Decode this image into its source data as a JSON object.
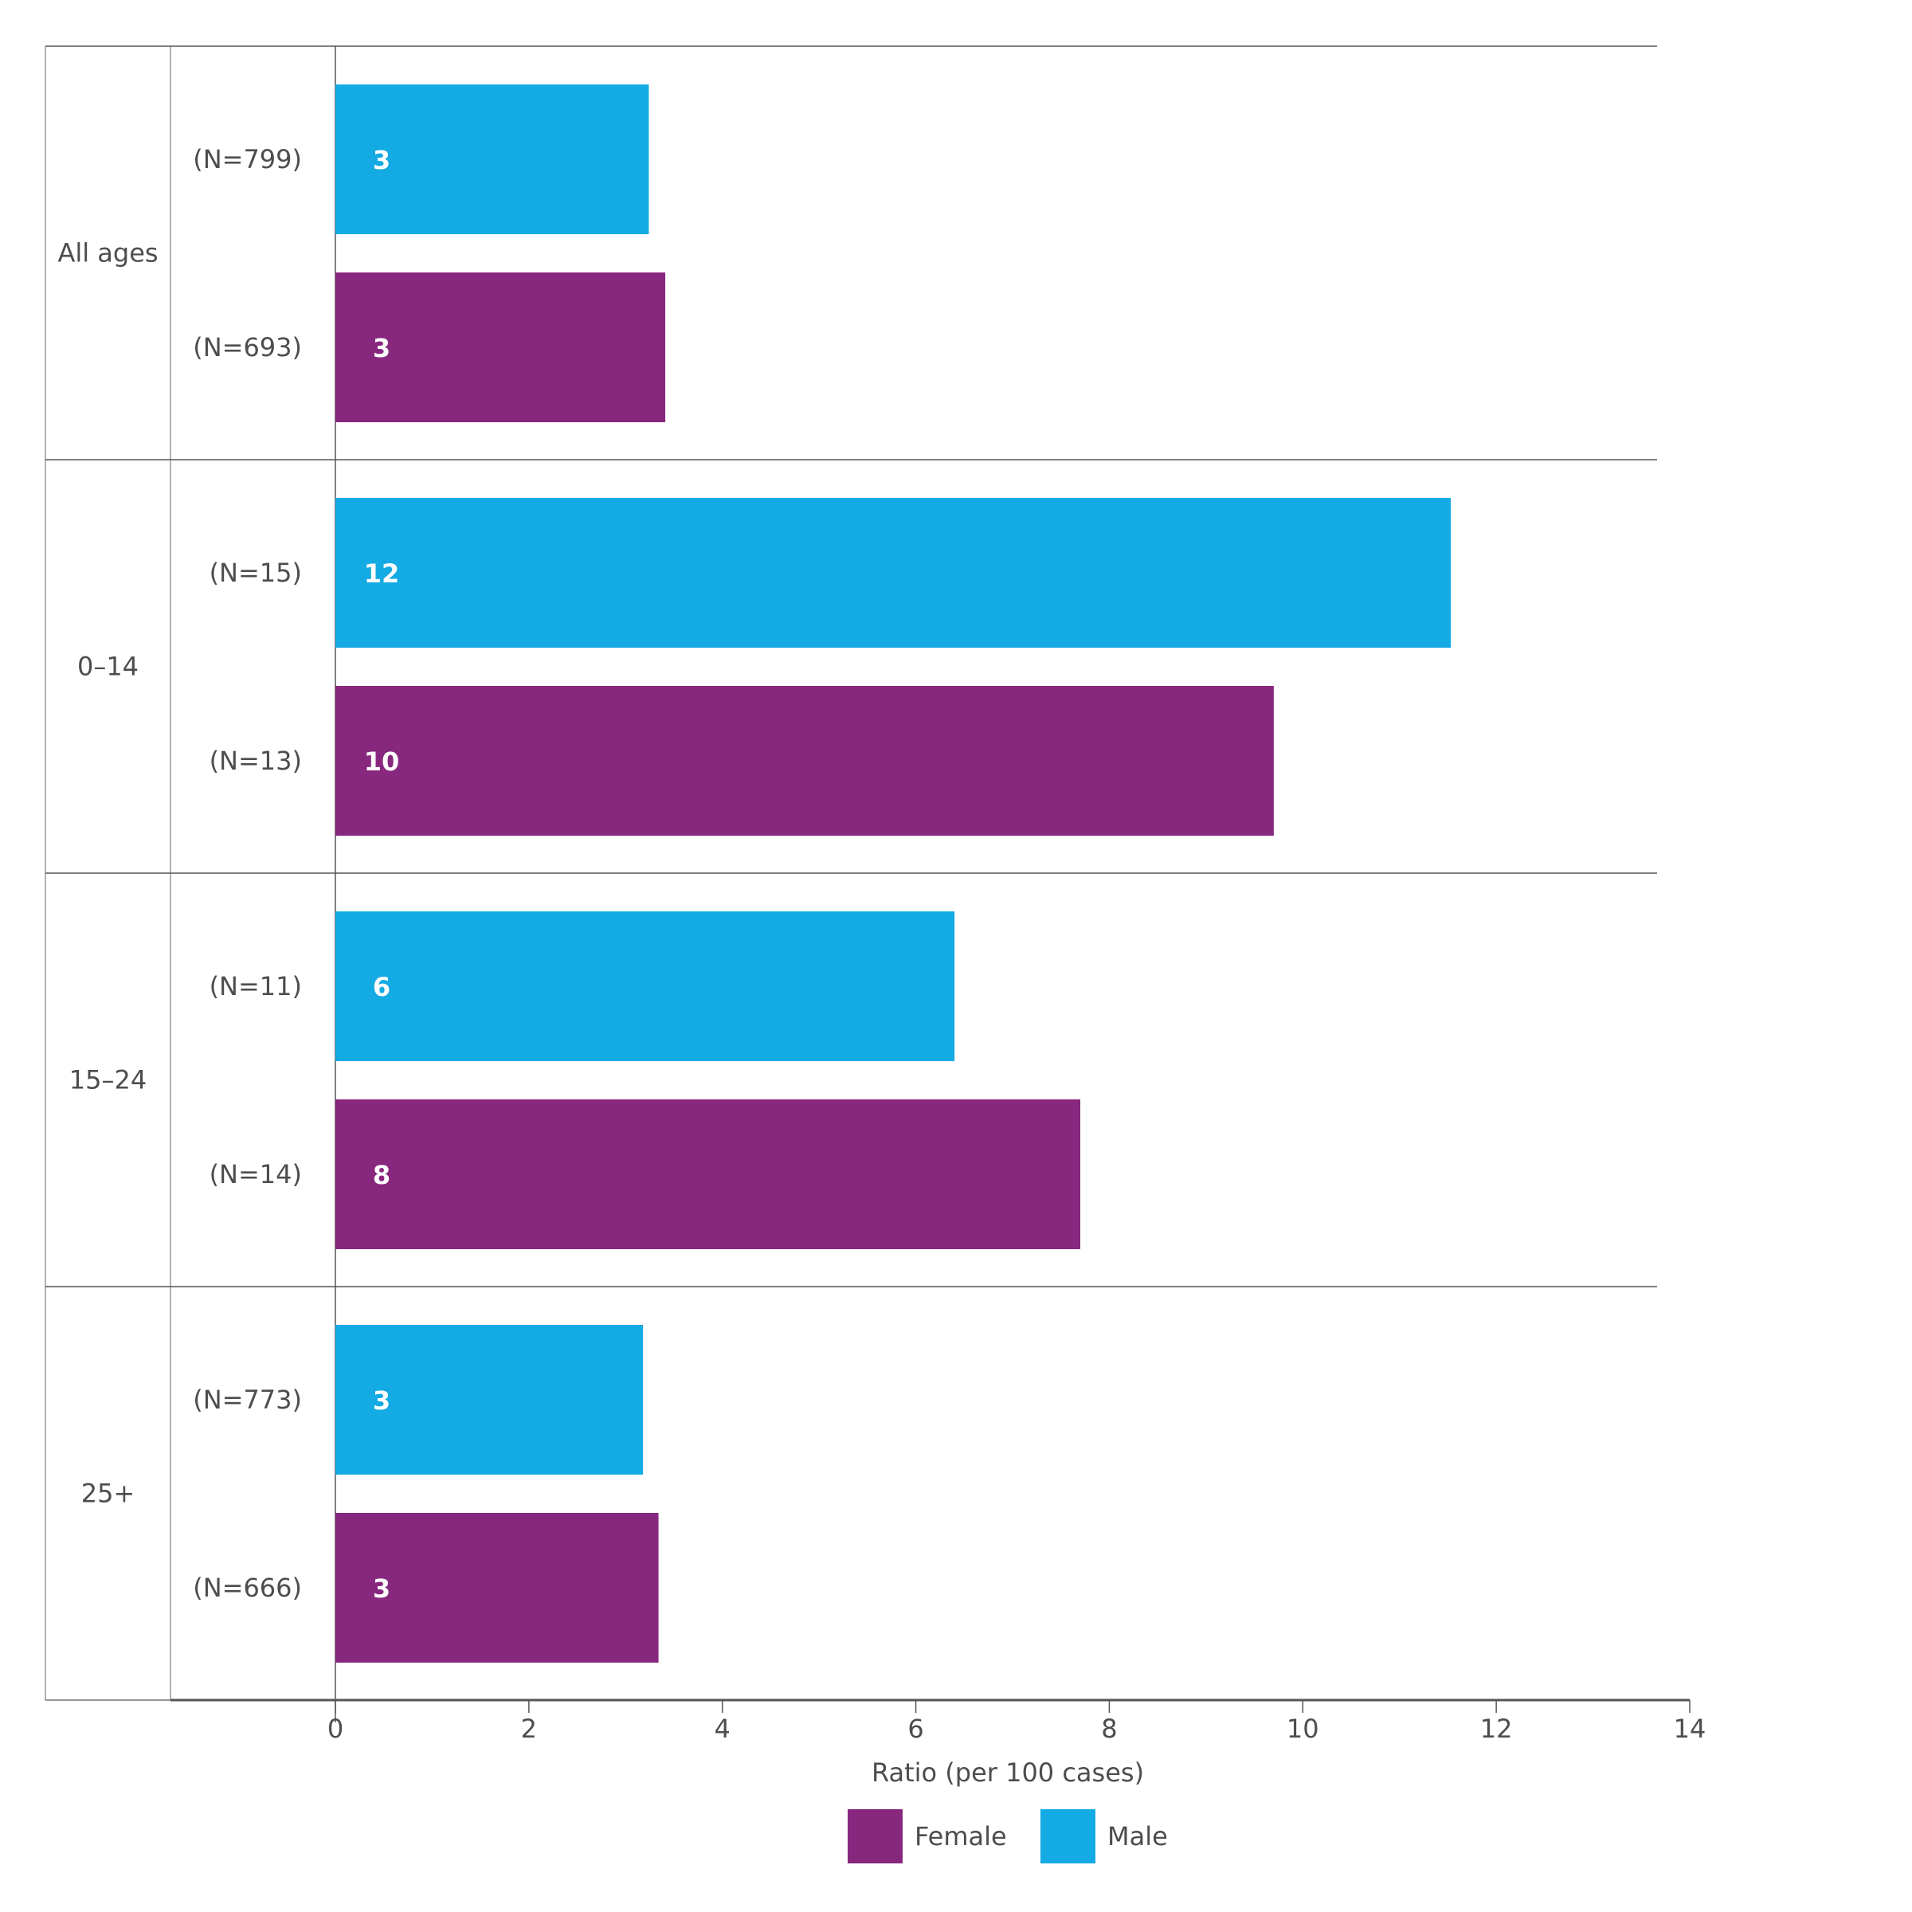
{
  "chart_data": {
    "type": "bar",
    "orientation": "horizontal",
    "xlabel": "Ratio (per 100 cases)",
    "xlim": [
      0,
      14
    ],
    "xticks": [
      0,
      2,
      4,
      6,
      8,
      10,
      12,
      14
    ],
    "grid": false,
    "legend_placement": "bottom",
    "legend": [
      {
        "name": "Female",
        "color": "#88277e"
      },
      {
        "name": "Male",
        "color": "#14aae3"
      }
    ],
    "groups": [
      {
        "label": "All ages",
        "bars": [
          {
            "series": "Male",
            "n_label": "(N=799)",
            "value": 3.24,
            "data_label": "3"
          },
          {
            "series": "Female",
            "n_label": "(N=693)",
            "value": 3.41,
            "data_label": "3"
          }
        ]
      },
      {
        "label": "0–14",
        "bars": [
          {
            "series": "Male",
            "n_label": "(N=15)",
            "value": 11.53,
            "data_label": "12"
          },
          {
            "series": "Female",
            "n_label": "(N=13)",
            "value": 9.7,
            "data_label": "10"
          }
        ]
      },
      {
        "label": "15–24",
        "bars": [
          {
            "series": "Male",
            "n_label": "(N=11)",
            "value": 6.4,
            "data_label": "6"
          },
          {
            "series": "Female",
            "n_label": "(N=14)",
            "value": 7.7,
            "data_label": "8"
          }
        ]
      },
      {
        "label": "25+",
        "bars": [
          {
            "series": "Male",
            "n_label": "(N=773)",
            "value": 3.18,
            "data_label": "3"
          },
          {
            "series": "Female",
            "n_label": "(N=666)",
            "value": 3.34,
            "data_label": "3"
          }
        ]
      }
    ]
  }
}
